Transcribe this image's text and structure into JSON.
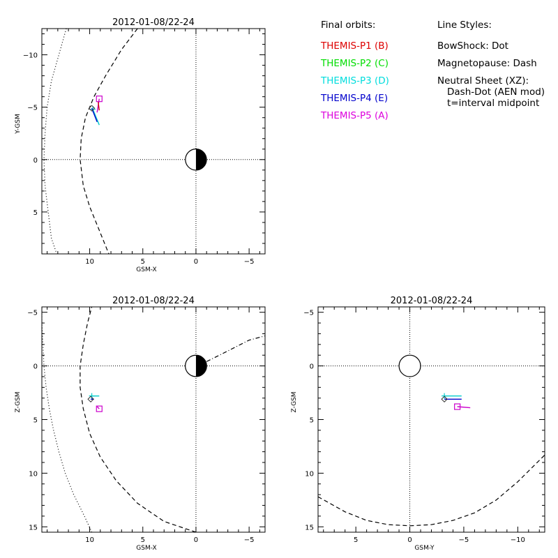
{
  "chart_data": [
    {
      "type": "line",
      "panel": "XY",
      "title": "2012-01-08/22-24",
      "xlabel": "GSM-X",
      "ylabel": "Y-GSM",
      "xlim": [
        14.5,
        -6.5
      ],
      "ylim": [
        -12.5,
        9
      ],
      "x_ticks": [
        10,
        5,
        0,
        -5
      ],
      "y_ticks": [
        -10,
        -5,
        0,
        5
      ],
      "x_tick_labels": [
        "10",
        "5",
        "0",
        "−5"
      ],
      "y_tick_labels": [
        "−10",
        "−5",
        "0",
        "5"
      ],
      "earth": {
        "x": 0,
        "y": 0,
        "radius": 1
      },
      "bow_shock": [
        [
          12.2,
          -12.5
        ],
        [
          12.9,
          -10
        ],
        [
          13.6,
          -7.5
        ],
        [
          14.0,
          -5
        ],
        [
          14.2,
          -2.5
        ],
        [
          14.3,
          0
        ],
        [
          14.2,
          2.5
        ],
        [
          13.9,
          5
        ],
        [
          13.6,
          7.5
        ],
        [
          13.1,
          9
        ]
      ],
      "magnetopause": [
        [
          5.5,
          -12.5
        ],
        [
          7,
          -10.5
        ],
        [
          8.5,
          -8
        ],
        [
          9.6,
          -6
        ],
        [
          10.4,
          -4
        ],
        [
          10.8,
          -2
        ],
        [
          10.9,
          0
        ],
        [
          10.6,
          2.5
        ],
        [
          10,
          4.5
        ],
        [
          9.2,
          6.5
        ],
        [
          8.2,
          9
        ]
      ],
      "orbits": [
        {
          "probe": "P5",
          "color": "#cc00cc",
          "points": [
            [
              9.1,
              -5.8
            ],
            [
              9.3,
              -4.5
            ]
          ],
          "marker": "square"
        },
        {
          "probe": "P1",
          "color": "#cc0000",
          "points": [
            [
              9.2,
              -5.5
            ],
            [
              9.1,
              -4.7
            ]
          ],
          "marker": "none"
        },
        {
          "probe": "P3",
          "color": "#00cccc",
          "points": [
            [
              9.7,
              -4.8
            ],
            [
              9.1,
              -3.3
            ]
          ],
          "marker": "star"
        },
        {
          "probe": "P4",
          "color": "#0000cc",
          "points": [
            [
              9.8,
              -4.9
            ],
            [
              9.3,
              -3.6
            ]
          ],
          "marker": "diamond"
        }
      ],
      "neutral_sheet": []
    },
    {
      "type": "line",
      "panel": "XZ",
      "title": "2012-01-08/22-24",
      "xlabel": "GSM-X",
      "ylabel": "Z-GSM",
      "xlim": [
        14.5,
        -6.5
      ],
      "ylim": [
        -5.5,
        15.5
      ],
      "x_ticks": [
        10,
        5,
        0,
        -5
      ],
      "y_ticks": [
        -5,
        0,
        5,
        10,
        15
      ],
      "x_tick_labels": [
        "10",
        "5",
        "0",
        "−5"
      ],
      "y_tick_labels": [
        "−5",
        "0",
        "5",
        "10",
        "15"
      ],
      "earth": {
        "x": 0,
        "y": 0,
        "radius": 1
      },
      "bow_shock": [
        [
          9.8,
          15.5
        ],
        [
          10.5,
          14
        ],
        [
          11.5,
          12
        ],
        [
          12.3,
          10
        ],
        [
          12.9,
          8
        ],
        [
          13.4,
          6
        ],
        [
          13.8,
          4
        ],
        [
          14.1,
          2
        ],
        [
          14.3,
          0
        ],
        [
          14.4,
          -2
        ],
        [
          14.5,
          -4
        ],
        [
          14.5,
          -5.5
        ]
      ],
      "magnetopause": [
        [
          0,
          15.5
        ],
        [
          3,
          14.5
        ],
        [
          5.5,
          12.8
        ],
        [
          7.5,
          10.7
        ],
        [
          9,
          8.5
        ],
        [
          10,
          6.3
        ],
        [
          10.6,
          4
        ],
        [
          10.9,
          2
        ],
        [
          10.9,
          0
        ],
        [
          10.6,
          -2
        ],
        [
          10.2,
          -4
        ],
        [
          9.8,
          -5.5
        ]
      ],
      "orbits": [
        {
          "probe": "P5",
          "color": "#cc00cc",
          "points": [
            [
              9.1,
              4.0
            ],
            [
              9.3,
              3.8
            ]
          ],
          "marker": "square"
        },
        {
          "probe": "P3",
          "color": "#00cccc",
          "points": [
            [
              9.8,
              2.8
            ],
            [
              9.1,
              2.8
            ]
          ],
          "marker": "star"
        },
        {
          "probe": "P4",
          "color": "#0000cc",
          "points": [
            [
              9.9,
              3.1
            ],
            [
              9.6,
              3.1
            ]
          ],
          "marker": "diamond"
        }
      ],
      "neutral_sheet": [
        [
          -1,
          -0.4
        ],
        [
          -2,
          -0.9
        ],
        [
          -3,
          -1.4
        ],
        [
          -4,
          -1.9
        ],
        [
          -5,
          -2.4
        ],
        [
          -6.5,
          -2.8
        ]
      ]
    },
    {
      "type": "line",
      "panel": "YZ",
      "title": "2012-01-08/22-24",
      "xlabel": "GSM-Y",
      "ylabel": "Z-GSM",
      "xlim": [
        8.5,
        -12.5
      ],
      "ylim": [
        -5.5,
        15.5
      ],
      "x_ticks": [
        5,
        0,
        -5,
        -10
      ],
      "y_ticks": [
        -5,
        0,
        5,
        10,
        15
      ],
      "x_tick_labels": [
        "5",
        "0",
        "−5",
        "−10"
      ],
      "y_tick_labels": [
        "−5",
        "0",
        "5",
        "10",
        "15"
      ],
      "earth": {
        "x": 0,
        "y": 0,
        "radius": 1
      },
      "bow_shock": [],
      "magnetopause": [
        [
          8.5,
          12.2
        ],
        [
          6,
          13.6
        ],
        [
          4,
          14.4
        ],
        [
          2,
          14.8
        ],
        [
          0,
          14.9
        ],
        [
          -2,
          14.8
        ],
        [
          -4,
          14.4
        ],
        [
          -6,
          13.7
        ],
        [
          -8,
          12.5
        ],
        [
          -10,
          10.8
        ],
        [
          -12.5,
          8.3
        ]
      ],
      "orbits": [
        {
          "probe": "P5",
          "color": "#cc00cc",
          "points": [
            [
              -4.4,
              3.8
            ],
            [
              -5.6,
              3.9
            ]
          ],
          "marker": "square"
        },
        {
          "probe": "P3",
          "color": "#00cccc",
          "points": [
            [
              -3.2,
              2.8
            ],
            [
              -4.8,
              2.8
            ]
          ],
          "marker": "star"
        },
        {
          "probe": "P4",
          "color": "#0000cc",
          "points": [
            [
              -3.2,
              3.1
            ],
            [
              -4.8,
              3.1
            ]
          ],
          "marker": "diamond"
        }
      ],
      "neutral_sheet": []
    }
  ],
  "legend": {
    "orbits_title": "Final orbits:",
    "items": [
      {
        "label": "THEMIS-P1 (B)",
        "color": "#dd0000"
      },
      {
        "label": "THEMIS-P2 (C)",
        "color": "#00dd00"
      },
      {
        "label": "THEMIS-P3 (D)",
        "color": "#00dddd"
      },
      {
        "label": "THEMIS-P4 (E)",
        "color": "#0000cc"
      },
      {
        "label": "THEMIS-P5 (A)",
        "color": "#dd00dd"
      }
    ],
    "styles_title": "Line Styles:",
    "styles": [
      "BowShock: Dot",
      "Magnetopause: Dash",
      "Neutral Sheet (XZ):",
      "Dash-Dot (AEN mod)",
      "t=interval midpoint"
    ]
  }
}
